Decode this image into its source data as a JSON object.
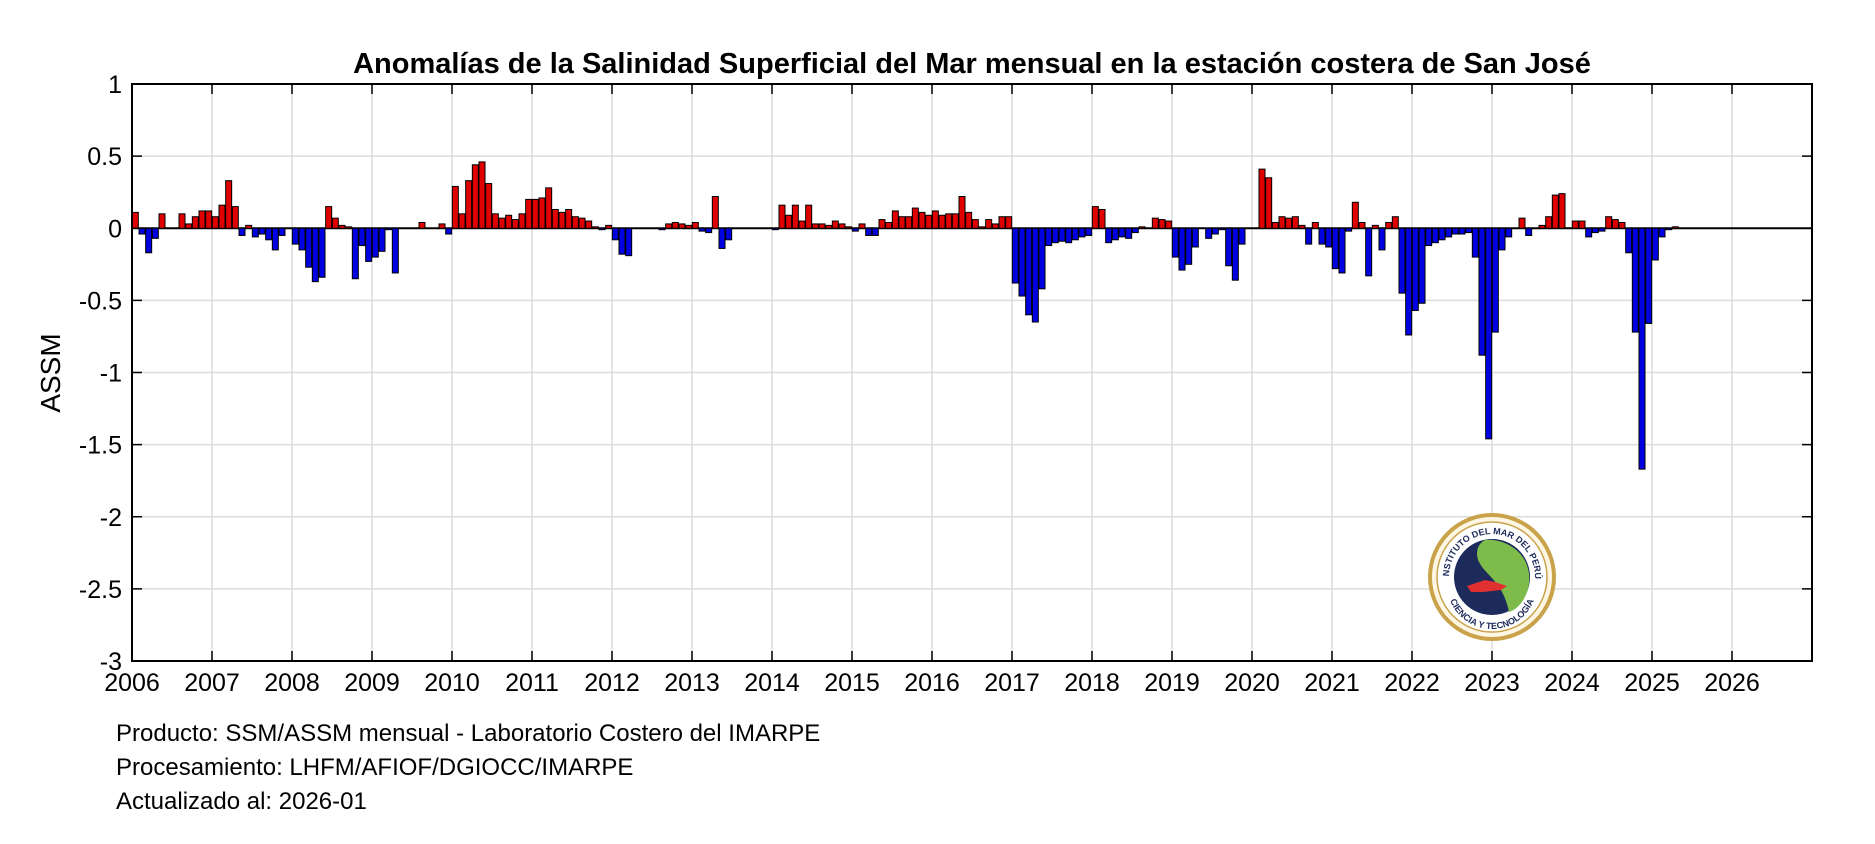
{
  "chart_data": {
    "type": "bar",
    "title": "Anomalías de la Salinidad Superficial del Mar mensual en la estación costera de San José",
    "xlabel": "",
    "ylabel": "ASSM",
    "xlim": [
      2006,
      2027
    ],
    "ylim": [
      -3,
      1
    ],
    "xticks": [
      "2006",
      "2007",
      "2008",
      "2009",
      "2010",
      "2011",
      "2012",
      "2013",
      "2014",
      "2015",
      "2016",
      "2017",
      "2018",
      "2019",
      "2020",
      "2021",
      "2022",
      "2023",
      "2024",
      "2025",
      "2026"
    ],
    "yticks": [
      "1",
      "0.5",
      "0",
      "-0.5",
      "-1",
      "-1.5",
      "-2",
      "-2.5",
      "-3"
    ],
    "grid": true,
    "colors": {
      "positive": "#e00000",
      "negative": "#0000e0",
      "edge": "#000000"
    },
    "series": [
      {
        "year": 2006,
        "values": [
          0.11,
          -0.04,
          -0.17,
          -0.07,
          0.1,
          null,
          null,
          0.1,
          0.03,
          0.08,
          0.12,
          0.12
        ]
      },
      {
        "year": 2007,
        "values": [
          0.08,
          0.16,
          0.33,
          0.15,
          -0.05,
          0.02,
          -0.06,
          -0.04,
          -0.08,
          -0.15,
          -0.05,
          null
        ]
      },
      {
        "year": 2008,
        "values": [
          -0.11,
          -0.15,
          -0.27,
          -0.37,
          -0.34,
          0.15,
          0.07,
          0.02,
          0.01,
          -0.35,
          -0.12,
          -0.23
        ]
      },
      {
        "year": 2009,
        "values": [
          -0.2,
          -0.16,
          -0.01,
          -0.31,
          null,
          null,
          null,
          0.04,
          null,
          null,
          0.03,
          -0.04
        ]
      },
      {
        "year": 2010,
        "values": [
          0.29,
          0.1,
          0.33,
          0.44,
          0.46,
          0.31,
          0.1,
          0.07,
          0.09,
          0.06,
          0.1,
          0.2
        ]
      },
      {
        "year": 2011,
        "values": [
          0.2,
          0.21,
          0.28,
          0.13,
          0.11,
          0.13,
          0.08,
          0.07,
          0.05,
          0.01,
          -0.01,
          0.02
        ]
      },
      {
        "year": 2012,
        "values": [
          -0.08,
          -0.18,
          -0.19,
          null,
          null,
          null,
          null,
          -0.01,
          0.03,
          0.04,
          0.03,
          0.02
        ]
      },
      {
        "year": 2013,
        "values": [
          0.04,
          -0.02,
          -0.03,
          0.22,
          -0.14,
          -0.08,
          null,
          null,
          null,
          null,
          null,
          null
        ]
      },
      {
        "year": 2014,
        "values": [
          -0.01,
          0.16,
          0.09,
          0.16,
          0.05,
          0.16,
          0.03,
          0.03,
          0.02,
          0.05,
          0.03,
          0.01
        ]
      },
      {
        "year": 2015,
        "values": [
          -0.02,
          0.03,
          -0.05,
          -0.05,
          0.06,
          0.04,
          0.12,
          0.08,
          0.08,
          0.14,
          0.11,
          0.09
        ]
      },
      {
        "year": 2016,
        "values": [
          0.12,
          0.09,
          0.1,
          0.1,
          0.22,
          0.11,
          0.06,
          0.01,
          0.06,
          0.03,
          0.08,
          0.08
        ]
      },
      {
        "year": 2017,
        "values": [
          -0.38,
          -0.47,
          -0.6,
          -0.65,
          -0.42,
          -0.12,
          -0.1,
          -0.09,
          -0.1,
          -0.08,
          -0.06,
          -0.05
        ]
      },
      {
        "year": 2018,
        "values": [
          0.15,
          0.13,
          -0.1,
          -0.08,
          -0.06,
          -0.07,
          -0.03,
          0.01,
          null,
          0.07,
          0.06,
          0.05
        ]
      },
      {
        "year": 2019,
        "values": [
          -0.2,
          -0.29,
          -0.25,
          -0.13,
          null,
          -0.07,
          -0.04,
          -0.01,
          -0.26,
          -0.36,
          -0.11,
          null
        ]
      },
      {
        "year": 2020,
        "values": [
          null,
          0.41,
          0.35,
          0.04,
          0.08,
          0.07,
          0.08,
          0.02,
          -0.11,
          0.04,
          -0.11,
          -0.13
        ]
      },
      {
        "year": 2021,
        "values": [
          -0.28,
          -0.31,
          -0.02,
          0.18,
          0.04,
          -0.33,
          0.02,
          -0.15,
          0.04,
          0.08,
          -0.45,
          -0.74
        ]
      },
      {
        "year": 2022,
        "values": [
          -0.57,
          -0.52,
          -0.12,
          -0.1,
          -0.08,
          -0.06,
          -0.04,
          -0.04,
          -0.03,
          -0.2,
          -0.88,
          -1.46
        ]
      },
      {
        "year": 2023,
        "values": [
          -0.72,
          -0.15,
          -0.06,
          null,
          0.07,
          -0.05,
          null,
          0.02,
          0.08,
          0.23,
          0.24,
          null
        ]
      },
      {
        "year": 2024,
        "values": [
          0.05,
          0.05,
          -0.06,
          -0.03,
          -0.02,
          0.08,
          0.06,
          0.04,
          -0.17,
          -0.72,
          -1.67,
          -0.66
        ]
      },
      {
        "year": 2025,
        "values": [
          -0.22,
          -0.06,
          -0.01,
          0.01,
          null,
          null,
          null,
          null,
          null,
          null,
          null,
          null
        ]
      }
    ]
  },
  "footer": {
    "line1": "Producto: SSM/ASSM mensual - Laboratorio Costero del IMARPE",
    "line2": "Procesamiento: LHFM/AFIOF/DGIOCC/IMARPE",
    "line3": "Actualizado al: 2026-01"
  },
  "logo": {
    "text_top": "INSTITUTO DEL MAR DEL PERÚ",
    "text_bottom": "CIENCIA Y TECNOLOGÍA"
  }
}
